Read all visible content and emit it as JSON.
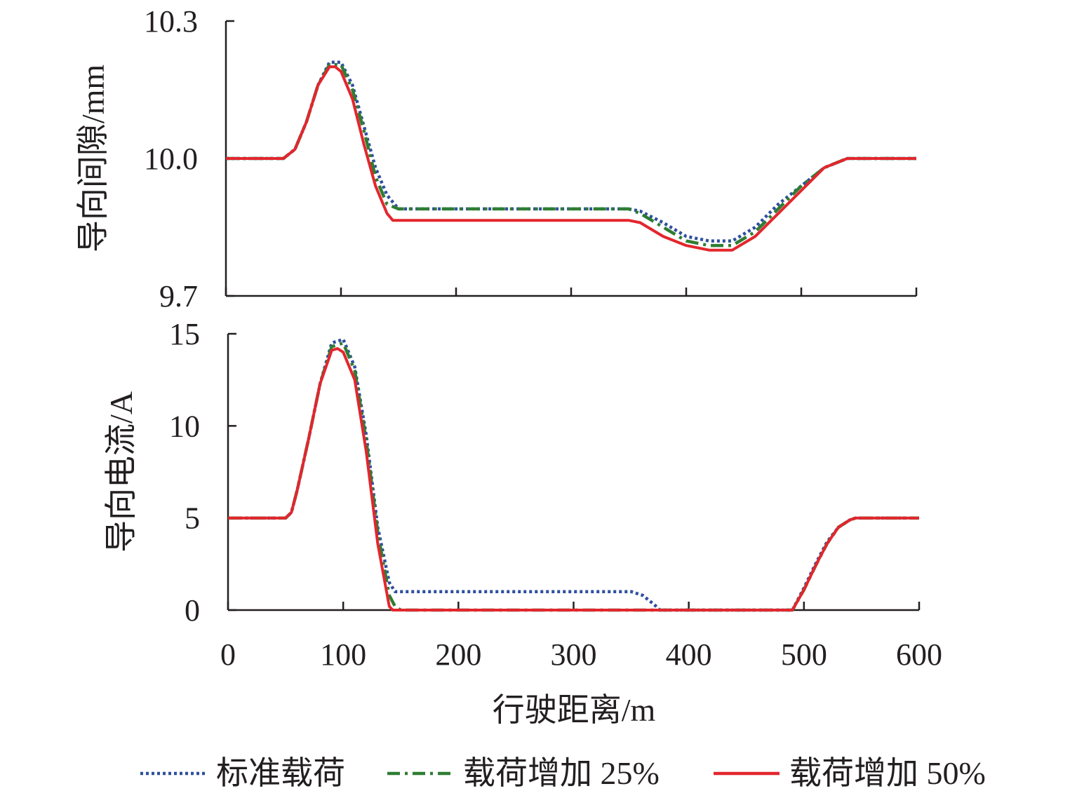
{
  "chart_data": [
    {
      "type": "line",
      "ylabel": "导向间隙/mm",
      "xlabel": "",
      "xlim": [
        0,
        600
      ],
      "ylim": [
        9.7,
        10.3
      ],
      "yticks": [
        {
          "value": 9.7,
          "label": "9.7"
        },
        {
          "value": 10.0,
          "label": "10.0"
        },
        {
          "value": 10.3,
          "label": "10.3"
        }
      ],
      "xticks": [
        0,
        100,
        200,
        300,
        400,
        500,
        600
      ],
      "show_x_tick_labels": false,
      "grid": false,
      "series": [
        {
          "name": "标准载荷",
          "color": "#2e4f9e",
          "dash": "dotted",
          "x": [
            0,
            50,
            60,
            70,
            80,
            90,
            100,
            110,
            120,
            130,
            140,
            150,
            200,
            300,
            350,
            360,
            380,
            400,
            420,
            440,
            460,
            480,
            500,
            520,
            540,
            550,
            600
          ],
          "y": [
            10.0,
            10.0,
            10.02,
            10.08,
            10.16,
            10.21,
            10.21,
            10.16,
            10.07,
            9.98,
            9.92,
            9.89,
            9.89,
            9.89,
            9.89,
            9.885,
            9.86,
            9.83,
            9.82,
            9.82,
            9.85,
            9.9,
            9.94,
            9.98,
            10.0,
            10.0,
            10.0
          ]
        },
        {
          "name": "载荷增加 25%",
          "color": "#2e7d32",
          "dash": "dashdot",
          "x": [
            0,
            50,
            60,
            70,
            80,
            90,
            100,
            110,
            120,
            130,
            140,
            150,
            200,
            300,
            350,
            360,
            380,
            400,
            420,
            440,
            460,
            480,
            500,
            520,
            540,
            550,
            600
          ],
          "y": [
            10.0,
            10.0,
            10.02,
            10.08,
            10.16,
            10.205,
            10.205,
            10.15,
            10.06,
            9.96,
            9.9,
            9.89,
            9.89,
            9.89,
            9.89,
            9.88,
            9.85,
            9.82,
            9.81,
            9.81,
            9.84,
            9.89,
            9.94,
            9.98,
            10.0,
            10.0,
            10.0
          ]
        },
        {
          "name": "载荷增加 50%",
          "color": "#e3262d",
          "dash": "solid",
          "x": [
            0,
            50,
            60,
            70,
            80,
            90,
            95,
            100,
            110,
            120,
            130,
            140,
            145,
            150,
            200,
            300,
            350,
            360,
            380,
            400,
            420,
            430,
            440,
            460,
            480,
            500,
            520,
            540,
            550,
            600
          ],
          "y": [
            10.0,
            10.0,
            10.02,
            10.08,
            10.16,
            10.2,
            10.2,
            10.19,
            10.13,
            10.03,
            9.94,
            9.88,
            9.865,
            9.865,
            9.865,
            9.865,
            9.865,
            9.86,
            9.83,
            9.81,
            9.8,
            9.8,
            9.8,
            9.83,
            9.88,
            9.93,
            9.98,
            10.0,
            10.0,
            10.0
          ]
        }
      ]
    },
    {
      "type": "line",
      "ylabel": "导向电流/A",
      "xlabel": "行驶距离/m",
      "xlim": [
        0,
        600
      ],
      "ylim": [
        0,
        15
      ],
      "yticks": [
        {
          "value": 0,
          "label": "0"
        },
        {
          "value": 5,
          "label": "5"
        },
        {
          "value": 10,
          "label": "10"
        },
        {
          "value": 15,
          "label": "15"
        }
      ],
      "xticks": [
        0,
        100,
        200,
        300,
        400,
        500,
        600
      ],
      "show_x_tick_labels": true,
      "grid": false,
      "series": [
        {
          "name": "标准载荷",
          "color": "#2e4f9e",
          "dash": "dotted",
          "x": [
            0,
            50,
            55,
            60,
            70,
            80,
            90,
            100,
            110,
            120,
            130,
            140,
            145,
            150,
            200,
            300,
            350,
            360,
            370,
            375,
            380,
            490,
            500,
            510,
            520,
            530,
            540,
            545,
            600
          ],
          "y": [
            5,
            5,
            5.3,
            6.5,
            9.3,
            12.3,
            14.5,
            14.7,
            13.2,
            9.5,
            4.5,
            1.5,
            1.0,
            1.0,
            1.0,
            1.0,
            1.0,
            0.8,
            0.3,
            0,
            0,
            0,
            1.2,
            2.5,
            3.7,
            4.5,
            4.9,
            5,
            5
          ]
        },
        {
          "name": "载荷增加 25%",
          "color": "#2e7d32",
          "dash": "dashdot",
          "x": [
            0,
            50,
            55,
            60,
            70,
            80,
            90,
            100,
            110,
            120,
            130,
            140,
            145,
            150,
            490,
            500,
            510,
            520,
            530,
            540,
            545,
            600
          ],
          "y": [
            5,
            5,
            5.3,
            6.5,
            9.3,
            12.3,
            14.3,
            14.5,
            13.0,
            9.2,
            4.2,
            0.8,
            0.2,
            0,
            0,
            1.1,
            2.4,
            3.6,
            4.5,
            4.9,
            5,
            5
          ]
        },
        {
          "name": "载荷增加 50%",
          "color": "#e3262d",
          "dash": "solid",
          "x": [
            0,
            50,
            55,
            60,
            70,
            80,
            90,
            95,
            100,
            110,
            120,
            130,
            140,
            143,
            490,
            500,
            510,
            520,
            530,
            540,
            545,
            600
          ],
          "y": [
            5,
            5,
            5.3,
            6.5,
            9.3,
            12.3,
            14.1,
            14.2,
            14.0,
            12.5,
            8.6,
            3.6,
            0.2,
            0,
            0,
            1.1,
            2.4,
            3.6,
            4.5,
            4.9,
            5,
            5
          ]
        }
      ]
    }
  ],
  "legend": {
    "placement": "bottom",
    "items": [
      {
        "label": "标准载荷",
        "color": "#2e4f9e",
        "dash": "dotted"
      },
      {
        "label": "载荷增加 25%",
        "color": "#2e7d32",
        "dash": "dashdot"
      },
      {
        "label": "载荷增加 50%",
        "color": "#e3262d",
        "dash": "solid"
      }
    ]
  }
}
